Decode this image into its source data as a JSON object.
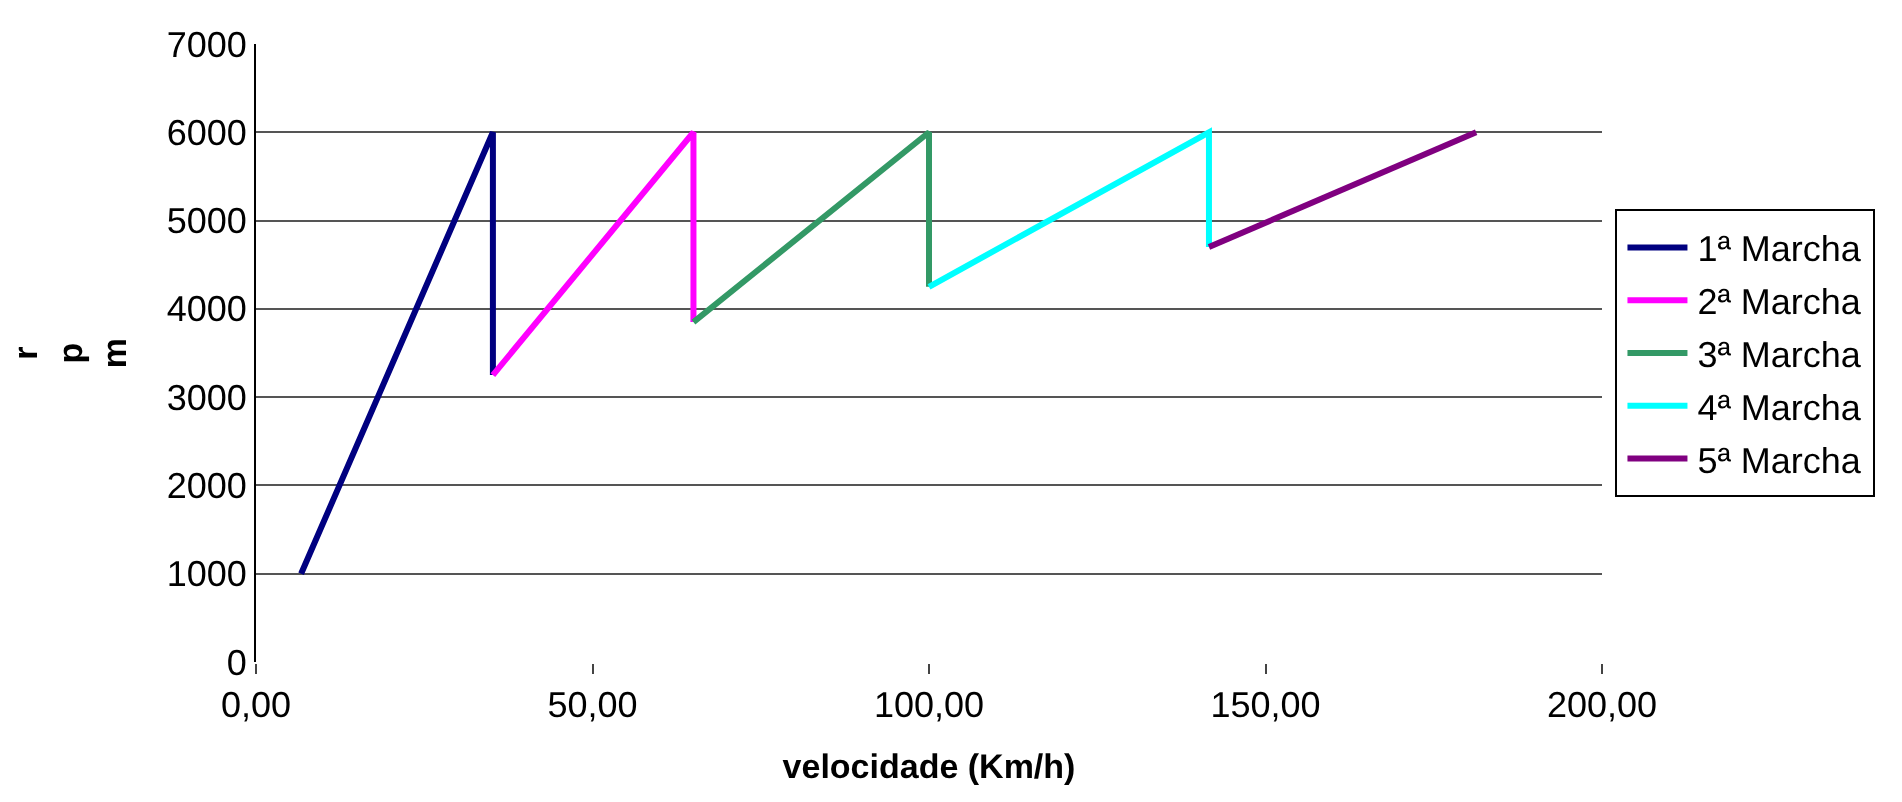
{
  "chart_data": {
    "type": "line",
    "xlabel": "velocidade (Km/h)",
    "ylabel": "rpm",
    "xlim": [
      0,
      200
    ],
    "ylim": [
      0,
      7000
    ],
    "xticks": [
      {
        "value": 0,
        "label": "0,00"
      },
      {
        "value": 50,
        "label": "50,00"
      },
      {
        "value": 100,
        "label": "100,00"
      },
      {
        "value": 150,
        "label": "150,00"
      },
      {
        "value": 200,
        "label": "200,00"
      }
    ],
    "yticks": [
      0,
      1000,
      2000,
      3000,
      4000,
      5000,
      6000,
      7000
    ],
    "grid": "y",
    "legend": "right",
    "marker": "none",
    "line_style": "solid",
    "series": [
      {
        "name": "1ª Marcha",
        "color": "#000080",
        "x": [
          6.7,
          35.2,
          35.2
        ],
        "values": [
          1000,
          6000,
          3250
        ]
      },
      {
        "name": "2ª Marcha",
        "color": "#ff00ff",
        "x": [
          35.2,
          65,
          65
        ],
        "values": [
          3250,
          6000,
          3850
        ]
      },
      {
        "name": "3ª Marcha",
        "color": "#339966",
        "x": [
          65,
          100,
          100
        ],
        "values": [
          3850,
          6000,
          4250
        ]
      },
      {
        "name": "4ª Marcha",
        "color": "#00ffff",
        "x": [
          100,
          141.6,
          141.6
        ],
        "values": [
          4250,
          6000,
          4700
        ]
      },
      {
        "name": "5ª Marcha",
        "color": "#800080",
        "x": [
          141.6,
          181.3
        ],
        "values": [
          4700,
          6000
        ]
      }
    ]
  }
}
